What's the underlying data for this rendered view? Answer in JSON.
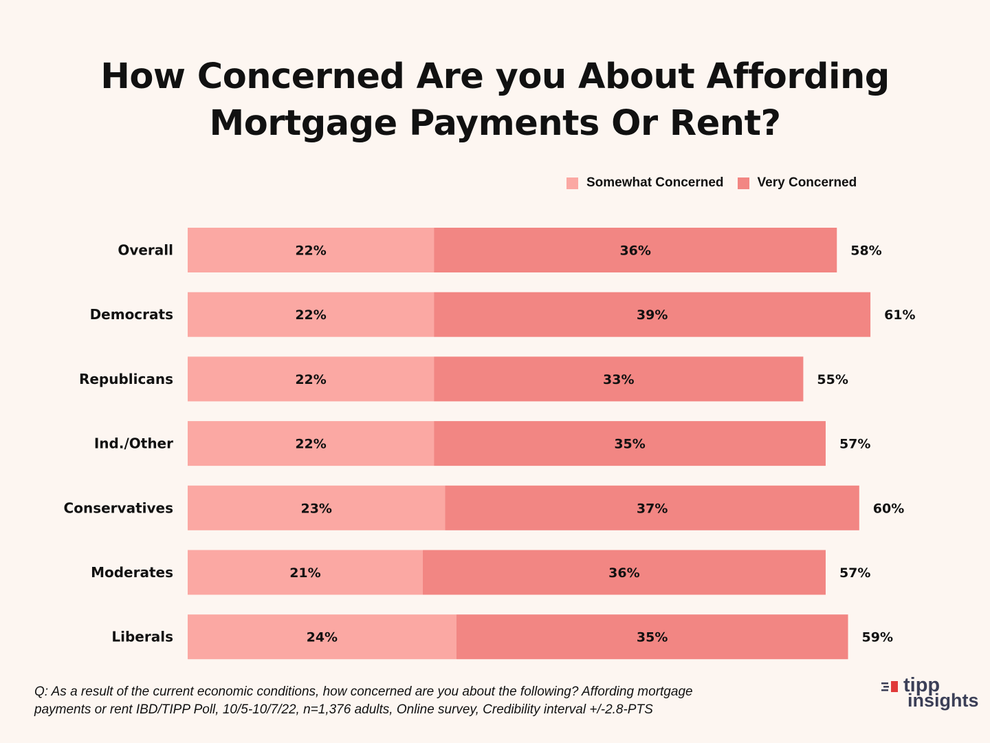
{
  "title_line1": "How Concerned Are you About Affording",
  "title_line2": "Mortgage Payments Or Rent?",
  "legend": [
    {
      "label": "Somewhat Concerned",
      "color": "#fba8a3"
    },
    {
      "label": "Very Concerned",
      "color": "#f28683"
    }
  ],
  "chart_data": {
    "type": "bar",
    "orientation": "horizontal",
    "stacked": true,
    "categories": [
      "Overall",
      "Democrats",
      "Republicans",
      "Ind./Other",
      "Conservatives",
      "Moderates",
      "Liberals"
    ],
    "series": [
      {
        "name": "Somewhat Concerned",
        "color": "#fba8a3",
        "values": [
          22,
          22,
          22,
          22,
          23,
          21,
          24
        ]
      },
      {
        "name": "Very Concerned",
        "color": "#f28683",
        "values": [
          36,
          39,
          33,
          35,
          37,
          36,
          35
        ]
      }
    ],
    "totals": [
      58,
      61,
      55,
      57,
      60,
      57,
      59
    ],
    "value_suffix": "%",
    "grid": false,
    "legend_position": "top-right"
  },
  "footnote_line1": "Q: As a result of the current economic conditions, how concerned are you about the following? Affording mortgage",
  "footnote_line2": "payments or rent IBD/TIPP Poll, 10/5-10/7/22, n=1,376 adults, Online survey, Credibility interval +/-2.8-PTS",
  "logo": {
    "line1": "tipp",
    "line2": "insights",
    "flag_color": "#e03a3a"
  }
}
